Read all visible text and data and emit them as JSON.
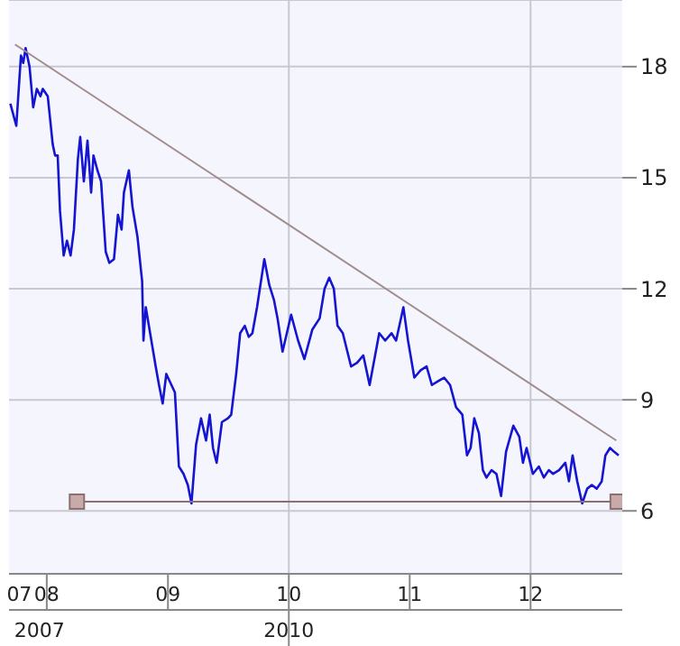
{
  "chart_data": {
    "type": "line",
    "xlim": [
      "2007-09-09",
      "2012-10-04"
    ],
    "ylim": [
      4.3,
      19.8
    ],
    "xticks": [
      {
        "value": "2007-10-10",
        "label": "07"
      },
      {
        "value": "2008-01-01",
        "label": "08"
      },
      {
        "value": "2009-01-01",
        "label": "09"
      },
      {
        "value": "2010-01-01",
        "label": "10"
      },
      {
        "value": "2011-01-01",
        "label": "11"
      },
      {
        "value": "2012-01-01",
        "label": "12"
      }
    ],
    "x2lim": [
      "2007-09-09",
      "2012-10-04"
    ],
    "x2ticks": [
      {
        "value": "2007-12-10",
        "label": "2007"
      },
      {
        "value": "2010-01-01",
        "label": "2010"
      }
    ],
    "yticks": [
      6,
      9,
      12,
      15,
      18
    ],
    "grid": "y",
    "marker": "none",
    "ref_lines": [
      {
        "axis": "x",
        "value": "2010-01-01",
        "color": "#c8c8d0"
      },
      {
        "axis": "x",
        "value": "2012-01-01",
        "color": "#c8c8d0"
      }
    ],
    "series": [
      {
        "color": "#1414d2",
        "x": [
          "2007-09-13",
          "2007-10-01",
          "2007-10-15",
          "2007-10-22",
          "2007-10-29",
          "2007-11-10",
          "2007-11-21",
          "2007-12-02",
          "2007-12-13",
          "2007-12-20",
          "2008-01-04",
          "2008-01-19",
          "2008-01-26",
          "2008-02-03",
          "2008-02-10",
          "2008-02-21",
          "2008-03-02",
          "2008-03-13",
          "2008-03-23",
          "2008-04-04",
          "2008-04-11",
          "2008-04-22",
          "2008-05-03",
          "2008-05-14",
          "2008-05-21",
          "2008-06-02",
          "2008-06-13",
          "2008-06-27",
          "2008-07-08",
          "2008-07-22",
          "2008-08-03",
          "2008-08-14",
          "2008-08-21",
          "2008-09-05",
          "2008-09-16",
          "2008-10-01",
          "2008-10-15",
          "2008-10-19",
          "2008-10-26",
          "2008-11-25",
          "2008-12-05",
          "2008-12-16",
          "2008-12-27",
          "2009-01-22",
          "2009-02-03",
          "2009-02-17",
          "2009-03-02",
          "2009-03-13",
          "2009-03-27",
          "2009-04-11",
          "2009-04-26",
          "2009-05-07",
          "2009-05-17",
          "2009-05-28",
          "2009-06-13",
          "2009-07-01",
          "2009-07-11",
          "2009-07-26",
          "2009-08-07",
          "2009-08-21",
          "2009-09-02",
          "2009-09-13",
          "2009-09-27",
          "2009-10-19",
          "2009-11-03",
          "2009-11-17",
          "2009-11-28",
          "2009-12-13",
          "2010-01-08",
          "2010-01-29",
          "2010-02-17",
          "2010-03-13",
          "2010-04-04",
          "2010-04-19",
          "2010-05-03",
          "2010-05-17",
          "2010-05-28",
          "2010-06-13",
          "2010-07-08",
          "2010-07-26",
          "2010-08-14",
          "2010-09-02",
          "2010-10-01",
          "2010-10-19",
          "2010-11-07",
          "2010-11-21",
          "2010-12-13",
          "2010-12-27",
          "2011-01-15",
          "2011-02-03",
          "2011-02-21",
          "2011-03-09",
          "2011-03-27",
          "2011-04-15",
          "2011-05-03",
          "2011-05-21",
          "2011-06-09",
          "2011-06-23",
          "2011-07-04",
          "2011-07-15",
          "2011-07-29",
          "2011-08-10",
          "2011-08-21",
          "2011-09-05",
          "2011-09-20",
          "2011-10-04",
          "2011-10-19",
          "2011-11-10",
          "2011-11-28",
          "2011-12-09",
          "2011-12-20",
          "2012-01-08",
          "2012-01-26",
          "2012-02-10",
          "2012-02-25",
          "2012-03-09",
          "2012-03-27",
          "2012-04-15",
          "2012-04-26",
          "2012-05-07",
          "2012-05-21",
          "2012-06-05",
          "2012-06-20",
          "2012-07-04",
          "2012-07-19",
          "2012-08-03",
          "2012-08-14",
          "2012-08-28",
          "2012-09-09",
          "2012-09-23"
        ],
        "values": [
          17.0,
          16.4,
          18.3,
          18.1,
          18.5,
          18.0,
          16.9,
          17.4,
          17.2,
          17.4,
          17.2,
          15.9,
          15.6,
          15.6,
          14.1,
          12.9,
          13.3,
          12.9,
          13.6,
          15.5,
          16.1,
          14.9,
          16.0,
          14.6,
          15.6,
          15.2,
          14.9,
          13.0,
          12.7,
          12.8,
          14.0,
          13.6,
          14.6,
          15.2,
          14.2,
          13.4,
          12.2,
          10.6,
          11.5,
          9.9,
          9.4,
          8.9,
          9.7,
          9.2,
          7.2,
          7.0,
          6.7,
          6.2,
          7.8,
          8.5,
          7.9,
          8.6,
          7.7,
          7.3,
          8.4,
          8.5,
          8.6,
          9.7,
          10.8,
          11.0,
          10.7,
          10.8,
          11.5,
          12.8,
          12.1,
          11.7,
          11.2,
          10.3,
          11.3,
          10.6,
          10.1,
          10.9,
          11.2,
          12.0,
          12.3,
          12.0,
          11.0,
          10.8,
          9.9,
          10.0,
          10.2,
          9.4,
          10.8,
          10.6,
          10.8,
          10.6,
          11.5,
          10.6,
          9.6,
          9.8,
          9.9,
          9.4,
          9.5,
          9.6,
          9.4,
          8.8,
          8.6,
          7.5,
          7.7,
          8.5,
          8.1,
          7.1,
          6.9,
          7.1,
          7.0,
          6.4,
          7.6,
          8.3,
          8.0,
          7.3,
          7.7,
          7.0,
          7.2,
          6.9,
          7.1,
          7.0,
          7.1,
          7.3,
          6.8,
          7.5,
          6.8,
          6.2,
          6.6,
          6.7,
          6.6,
          6.8,
          7.5,
          7.7,
          7.6,
          7.5
        ]
      },
      {
        "type": "line",
        "color": "#a08c8c",
        "x": [
          "2007-09-27",
          "2012-09-16"
        ],
        "values": [
          18.6,
          7.9
        ]
      },
      {
        "type": "line",
        "color": "#8c7070",
        "marker": "square",
        "x": [
          "2008-04-01",
          "2012-09-20"
        ],
        "values": [
          6.25,
          6.25
        ]
      }
    ]
  }
}
